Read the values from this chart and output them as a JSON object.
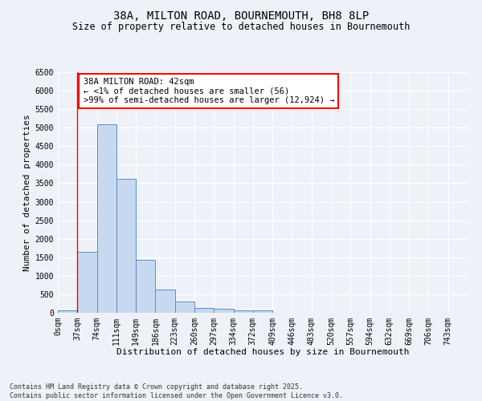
{
  "title1": "38A, MILTON ROAD, BOURNEMOUTH, BH8 8LP",
  "title2": "Size of property relative to detached houses in Bournemouth",
  "xlabel": "Distribution of detached houses by size in Bournemouth",
  "ylabel": "Number of detached properties",
  "bar_labels": [
    "0sqm",
    "37sqm",
    "74sqm",
    "111sqm",
    "149sqm",
    "186sqm",
    "223sqm",
    "260sqm",
    "297sqm",
    "334sqm",
    "372sqm",
    "409sqm",
    "446sqm",
    "483sqm",
    "520sqm",
    "557sqm",
    "594sqm",
    "632sqm",
    "669sqm",
    "706sqm",
    "743sqm"
  ],
  "bar_values": [
    56,
    1650,
    5100,
    3620,
    1430,
    620,
    310,
    140,
    100,
    70,
    55,
    0,
    0,
    0,
    0,
    0,
    0,
    0,
    0,
    0,
    0
  ],
  "bar_color": "#c7d9f0",
  "bar_edge_color": "#5b8ec4",
  "annotation_text": "38A MILTON ROAD: 42sqm\n← <1% of detached houses are smaller (56)\n>99% of semi-detached houses are larger (12,924) →",
  "annotation_box_color": "white",
  "annotation_border_color": "red",
  "marker_line_color": "red",
  "ylim": [
    0,
    6500
  ],
  "yticks": [
    0,
    500,
    1000,
    1500,
    2000,
    2500,
    3000,
    3500,
    4000,
    4500,
    5000,
    5500,
    6000,
    6500
  ],
  "footer": "Contains HM Land Registry data © Crown copyright and database right 2025.\nContains public sector information licensed under the Open Government Licence v3.0.",
  "bg_color": "#eef2f8",
  "grid_color": "white",
  "title_fontsize": 10,
  "subtitle_fontsize": 8.5,
  "axis_label_fontsize": 8,
  "tick_fontsize": 7,
  "annotation_fontsize": 7.5,
  "footer_fontsize": 6
}
